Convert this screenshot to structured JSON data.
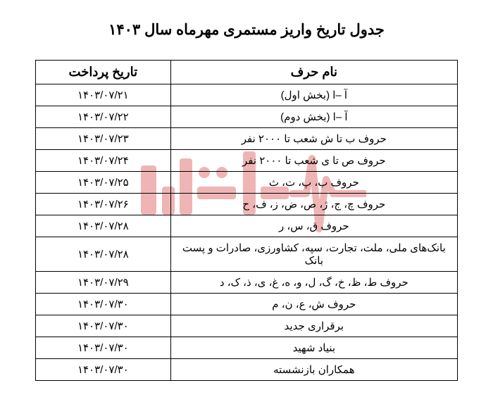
{
  "title": "جدول تاریخ واریز مستمری مهرماه سال ۱۴۰۳",
  "headers": {
    "letter": "نام حرف",
    "date": "تاریخ پرداخت"
  },
  "rows": [
    {
      "letter": "آ –ا (بخش اول)",
      "date": "۱۴۰۳/۰۷/۲۱"
    },
    {
      "letter": "آ –ا (بخش دوم)",
      "date": "۱۴۰۳/۰۷/۲۲"
    },
    {
      "letter": "حروف ب تا ش شعب تا ۲۰۰۰ نفر",
      "date": "۱۴۰۳/۰۷/۲۳"
    },
    {
      "letter": "حروف ص تا ی شعب تا ۲۰۰۰ نفر",
      "date": "۱۴۰۳/۰۷/۲۴"
    },
    {
      "letter": "حروف ب، پ، ت، ث",
      "date": "۱۴۰۳/۰۷/۲۵"
    },
    {
      "letter": "حروف چ، ج، ژ، ص، ض، ز، ف، ح",
      "date": "۱۴۰۳/۰۷/۲۶"
    },
    {
      "letter": "حروف ق، س، ر",
      "date": "۱۴۰۳/۰۷/۲۸"
    },
    {
      "letter": "بانک‌های ملی، ملت، تجارت، سپه، کشاورزی، صادرات و پست بانک",
      "date": "۱۴۰۳/۰۷/۲۸"
    },
    {
      "letter": "حروف ط، ظ، خ، گ، ل، و، ه، غ، ی، ذ، ک، د",
      "date": "۱۴۰۳/۰۷/۲۹"
    },
    {
      "letter": "حروف ش، ع، ن، م",
      "date": "۱۴۰۳/۰۷/۳۰"
    },
    {
      "letter": "برقراری جدید",
      "date": "۱۴۰۳/۰۷/۳۰"
    },
    {
      "letter": "بنیاد شهید",
      "date": "۱۴۰۳/۰۷/۳۰"
    },
    {
      "letter": "همکاران بازنشسته",
      "date": "۱۴۰۳/۰۷/۳۰"
    }
  ],
  "watermark": {
    "fill_color": "#d84848",
    "opacity": 0.4
  }
}
